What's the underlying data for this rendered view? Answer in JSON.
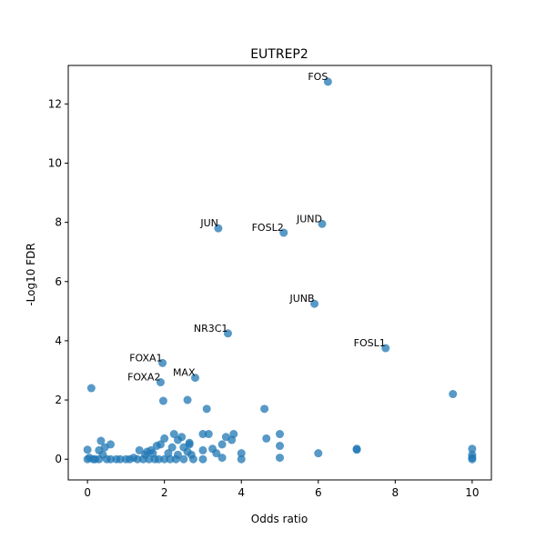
{
  "chart_data": {
    "type": "scatter",
    "title": "EUTREP2",
    "xlabel": "Odds ratio",
    "ylabel": "-Log10 FDR",
    "xlim": [
      -0.5,
      10.5
    ],
    "ylim": [
      -0.7,
      13.3
    ],
    "xticks": [
      0,
      2,
      4,
      6,
      8,
      10
    ],
    "yticks": [
      0,
      2,
      4,
      6,
      8,
      10,
      12
    ],
    "grid": false,
    "marker_color": "#1f77b4",
    "points": [
      {
        "x": 6.25,
        "y": 12.75
      },
      {
        "x": 3.4,
        "y": 7.8
      },
      {
        "x": 5.1,
        "y": 7.65
      },
      {
        "x": 6.1,
        "y": 7.95
      },
      {
        "x": 5.9,
        "y": 5.25
      },
      {
        "x": 3.65,
        "y": 4.25
      },
      {
        "x": 7.75,
        "y": 3.75
      },
      {
        "x": 1.95,
        "y": 3.25
      },
      {
        "x": 2.8,
        "y": 2.75
      },
      {
        "x": 1.9,
        "y": 2.6
      },
      {
        "x": 0.1,
        "y": 2.4
      },
      {
        "x": 9.5,
        "y": 2.2
      },
      {
        "x": 2.6,
        "y": 2.0
      },
      {
        "x": 1.97,
        "y": 1.97
      },
      {
        "x": 3.1,
        "y": 1.7
      },
      {
        "x": 4.6,
        "y": 1.7
      },
      {
        "x": 0.0,
        "y": 0.32
      },
      {
        "x": 0.35,
        "y": 0.62
      },
      {
        "x": 0.3,
        "y": 0.3
      },
      {
        "x": 0.45,
        "y": 0.4
      },
      {
        "x": 0.6,
        "y": 0.5
      },
      {
        "x": 0.2,
        "y": 0.0
      },
      {
        "x": 0.4,
        "y": 0.15
      },
      {
        "x": 0.75,
        "y": 0.0
      },
      {
        "x": 1.0,
        "y": 0.0
      },
      {
        "x": 1.2,
        "y": 0.05
      },
      {
        "x": 1.35,
        "y": 0.3
      },
      {
        "x": 1.5,
        "y": 0.15
      },
      {
        "x": 1.65,
        "y": 0.3
      },
      {
        "x": 1.8,
        "y": 0.45
      },
      {
        "x": 1.9,
        "y": 0.5
      },
      {
        "x": 2.0,
        "y": 0.7
      },
      {
        "x": 2.1,
        "y": 0.2
      },
      {
        "x": 2.2,
        "y": 0.4
      },
      {
        "x": 2.25,
        "y": 0.85
      },
      {
        "x": 2.35,
        "y": 0.65
      },
      {
        "x": 2.45,
        "y": 0.75
      },
      {
        "x": 2.5,
        "y": 0.4
      },
      {
        "x": 2.6,
        "y": 0.25
      },
      {
        "x": 2.65,
        "y": 0.55
      },
      {
        "x": 2.7,
        "y": 0.15
      },
      {
        "x": 3.0,
        "y": 0.85
      },
      {
        "x": 3.0,
        "y": 0.3
      },
      {
        "x": 3.15,
        "y": 0.85
      },
      {
        "x": 3.25,
        "y": 0.35
      },
      {
        "x": 3.35,
        "y": 0.2
      },
      {
        "x": 3.5,
        "y": 0.5
      },
      {
        "x": 3.5,
        "y": 0.05
      },
      {
        "x": 3.6,
        "y": 0.75
      },
      {
        "x": 3.75,
        "y": 0.65
      },
      {
        "x": 3.8,
        "y": 0.85
      },
      {
        "x": 4.0,
        "y": 0.2
      },
      {
        "x": 4.0,
        "y": 0.0
      },
      {
        "x": 4.65,
        "y": 0.7
      },
      {
        "x": 5.0,
        "y": 0.85
      },
      {
        "x": 5.0,
        "y": 0.45
      },
      {
        "x": 5.0,
        "y": 0.05
      },
      {
        "x": 6.0,
        "y": 0.2
      },
      {
        "x": 7.0,
        "y": 0.35
      },
      {
        "x": 7.0,
        "y": 0.32
      },
      {
        "x": 10.0,
        "y": 0.35
      },
      {
        "x": 10.0,
        "y": 0.15
      },
      {
        "x": 10.0,
        "y": 0.05
      },
      {
        "x": 10.0,
        "y": 0.0
      },
      {
        "x": 0.0,
        "y": 0.0
      },
      {
        "x": 0.05,
        "y": 0.05
      },
      {
        "x": 0.15,
        "y": 0.0
      },
      {
        "x": 0.3,
        "y": 0.0
      },
      {
        "x": 0.5,
        "y": 0.0
      },
      {
        "x": 0.6,
        "y": 0.0
      },
      {
        "x": 0.85,
        "y": 0.0
      },
      {
        "x": 1.1,
        "y": 0.0
      },
      {
        "x": 1.3,
        "y": 0.0
      },
      {
        "x": 1.45,
        "y": 0.0
      },
      {
        "x": 1.6,
        "y": 0.0
      },
      {
        "x": 1.75,
        "y": 0.0
      },
      {
        "x": 1.85,
        "y": 0.0
      },
      {
        "x": 2.0,
        "y": 0.0
      },
      {
        "x": 2.15,
        "y": 0.0
      },
      {
        "x": 2.3,
        "y": 0.0
      },
      {
        "x": 2.5,
        "y": 0.0
      },
      {
        "x": 2.75,
        "y": 0.0
      },
      {
        "x": 3.0,
        "y": 0.0
      },
      {
        "x": 1.55,
        "y": 0.25
      },
      {
        "x": 1.7,
        "y": 0.2
      },
      {
        "x": 2.35,
        "y": 0.15
      },
      {
        "x": 2.65,
        "y": 0.5
      }
    ],
    "annotations": [
      {
        "text": "FOS",
        "x": 6.25,
        "y": 12.75,
        "align": "right"
      },
      {
        "text": "JUN",
        "x": 3.4,
        "y": 7.8,
        "align": "right"
      },
      {
        "text": "FOSL2",
        "x": 5.1,
        "y": 7.65,
        "align": "right"
      },
      {
        "text": "JUND",
        "x": 6.1,
        "y": 7.95,
        "align": "right"
      },
      {
        "text": "JUNB",
        "x": 5.9,
        "y": 5.25,
        "align": "right"
      },
      {
        "text": "NR3C1",
        "x": 3.65,
        "y": 4.25,
        "align": "right"
      },
      {
        "text": "FOSL1",
        "x": 7.75,
        "y": 3.75,
        "align": "right"
      },
      {
        "text": "FOXA1",
        "x": 1.95,
        "y": 3.25,
        "align": "right"
      },
      {
        "text": "MAX",
        "x": 2.8,
        "y": 2.75,
        "align": "right"
      },
      {
        "text": "FOXA2",
        "x": 1.9,
        "y": 2.6,
        "align": "right"
      }
    ]
  }
}
